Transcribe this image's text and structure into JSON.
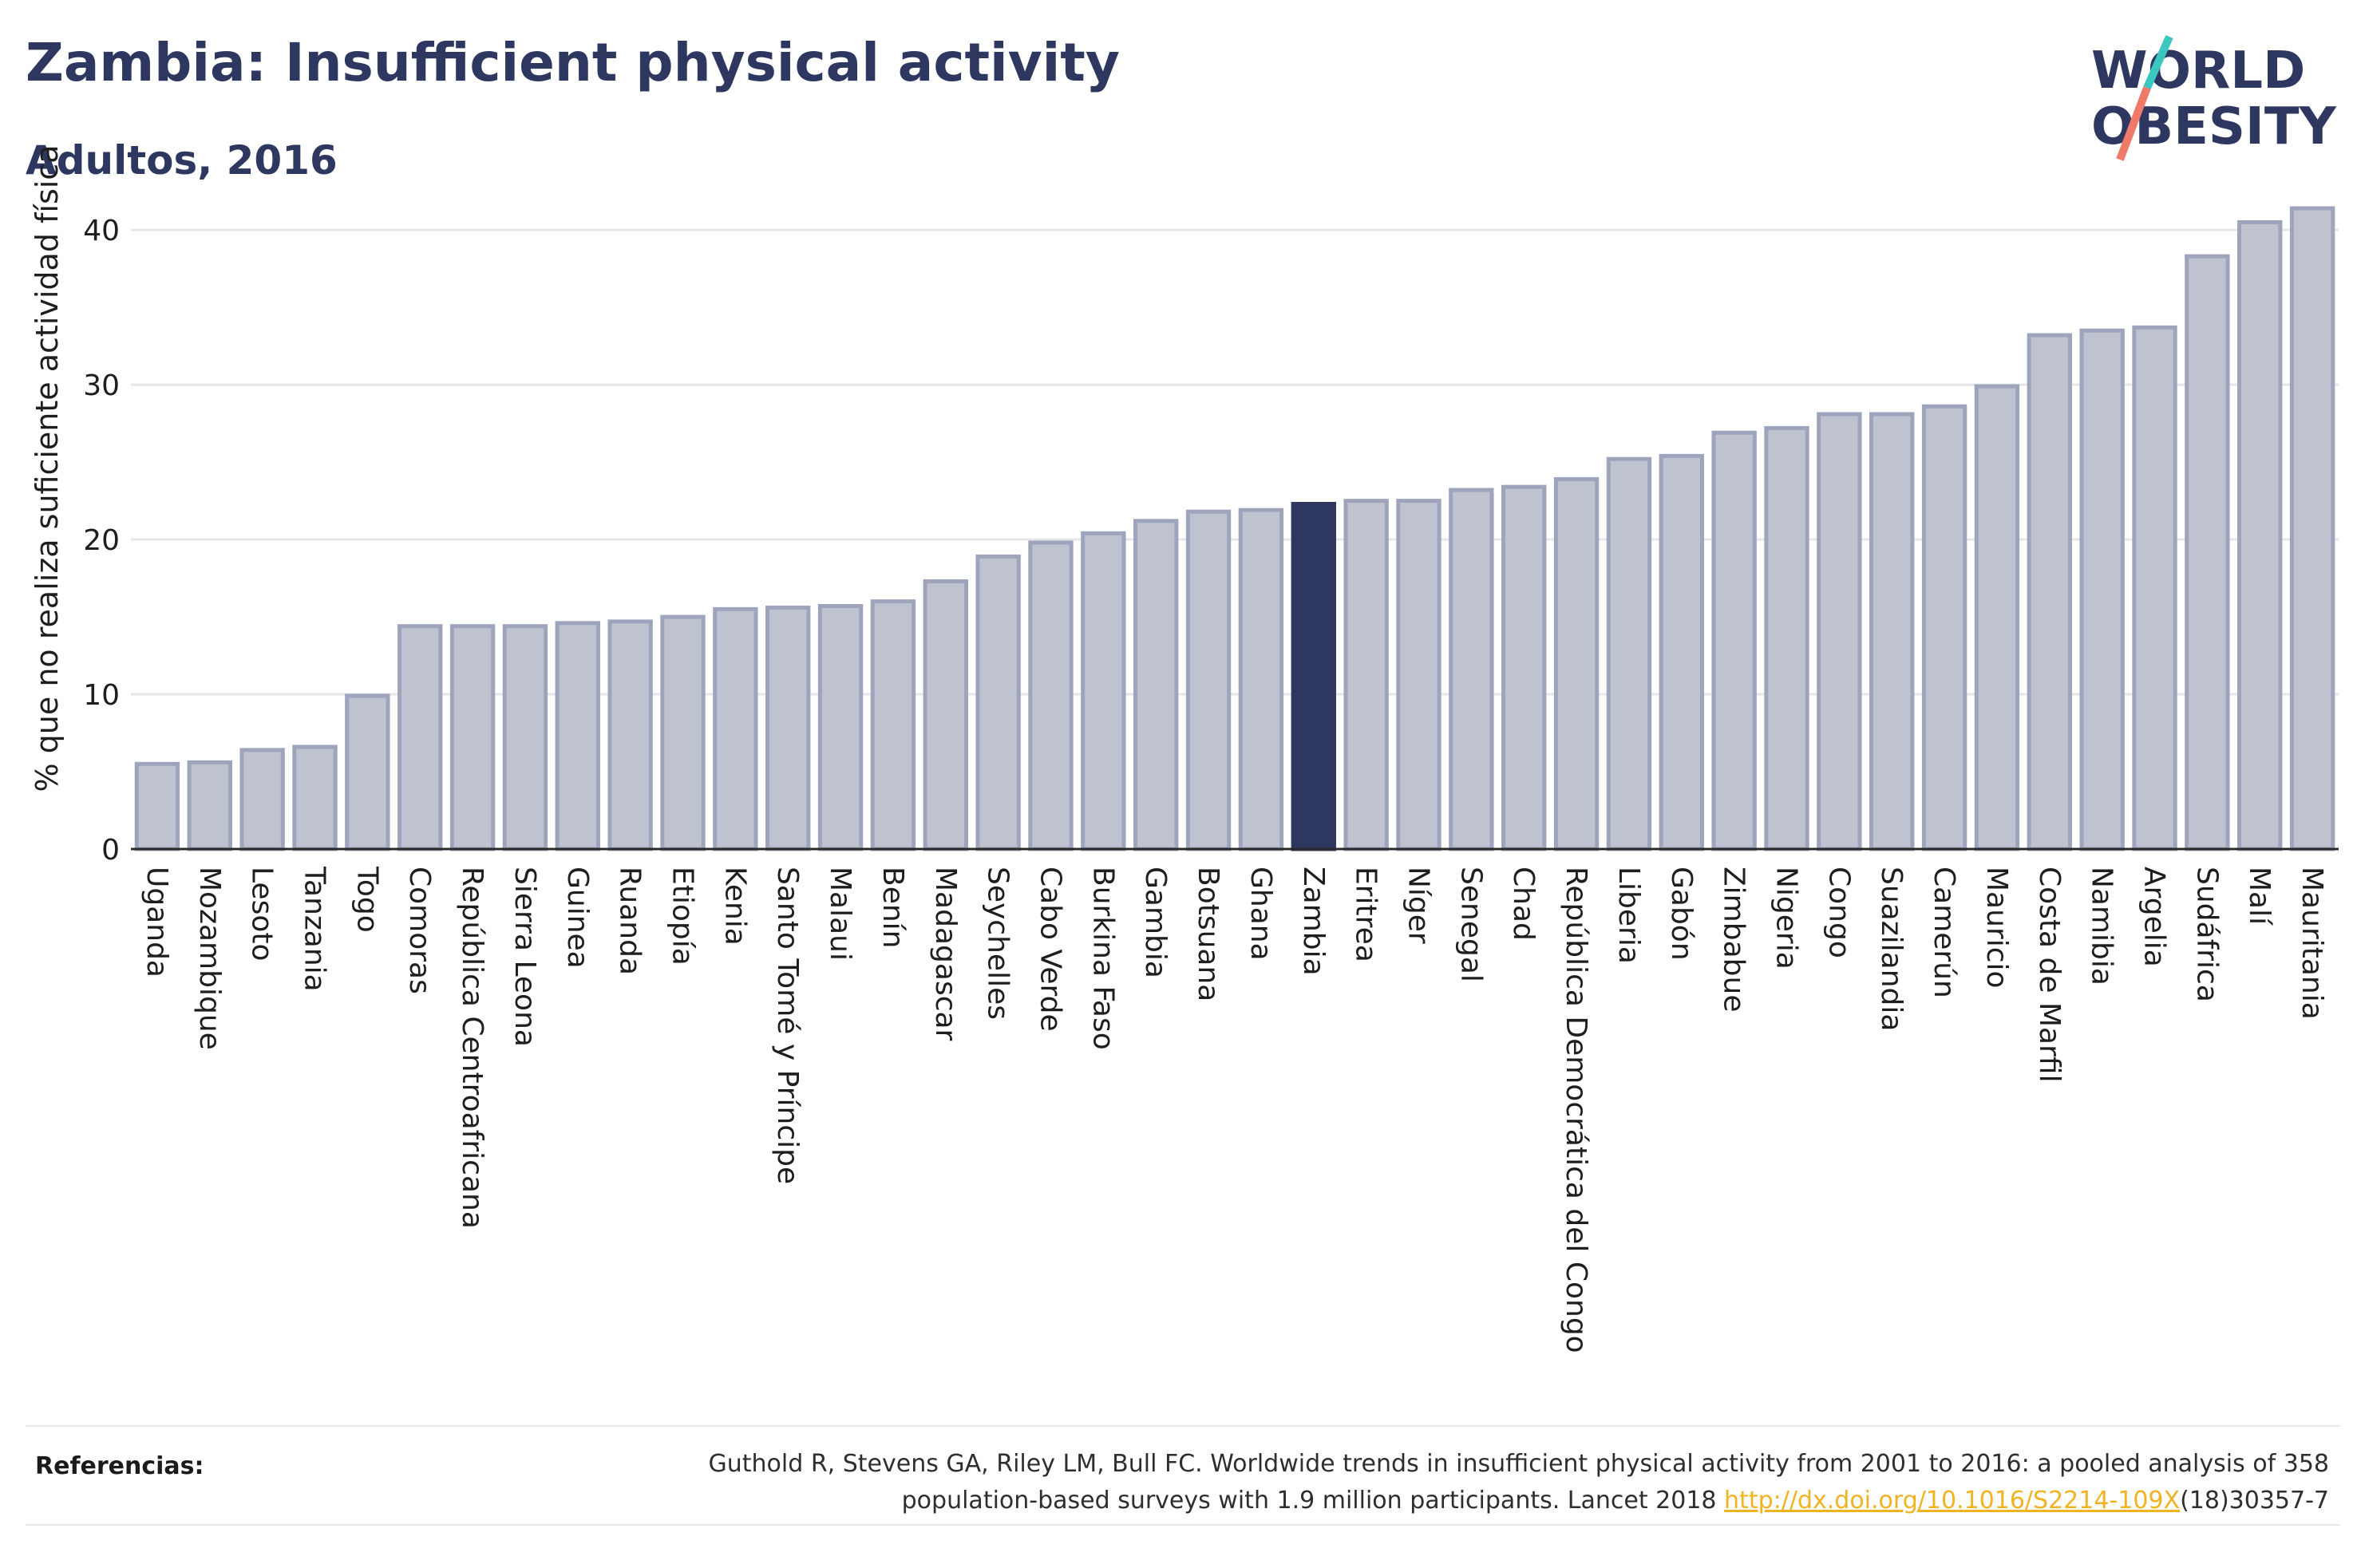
{
  "header": {
    "title": "Zambia: Insufficient physical activity",
    "subtitle": "Adultos, 2016"
  },
  "logo": {
    "line1": "WORLD",
    "line2": "OBESITY",
    "colors": {
      "text": "#2d3760",
      "slash_teal": "#3cc6c0",
      "slash_coral": "#f07a6a"
    }
  },
  "chart_data": {
    "type": "bar",
    "ylabel": "% que no realiza suficiente actividad física",
    "xlabel": "",
    "ylim": [
      0,
      43
    ],
    "yticks": [
      0,
      10,
      20,
      30,
      40
    ],
    "grid": true,
    "highlight": "Zambia",
    "colors": {
      "bar": "#bfc3d0",
      "bar_stroke": "#9ea4bc",
      "highlight": "#2d3760",
      "grid": "#e6e6ea",
      "axis": "#2b2b2b"
    },
    "categories": [
      "Uganda",
      "Mozambique",
      "Lesoto",
      "Tanzania",
      "Togo",
      "Comoras",
      "República Centroafricana",
      "Sierra Leona",
      "Guinea",
      "Ruanda",
      "Etiopía",
      "Kenia",
      "Santo Tomé y Príncipe",
      "Malaui",
      "Benín",
      "Madagascar",
      "Seychelles",
      "Cabo Verde",
      "Burkina Faso",
      "Gambia",
      "Botsuana",
      "Ghana",
      "Zambia",
      "Eritrea",
      "Níger",
      "Senegal",
      "Chad",
      "República Democrática del Congo",
      "Liberia",
      "Gabón",
      "Zimbabue",
      "Nigeria",
      "Congo",
      "Suazilandia",
      "Camerún",
      "Mauricio",
      "Costa de Marfil",
      "Namibia",
      "Argelia",
      "Sudáfrica",
      "Malí",
      "Mauritania"
    ],
    "values": [
      5.5,
      5.6,
      6.4,
      6.6,
      9.9,
      14.4,
      14.4,
      14.4,
      14.6,
      14.7,
      15.0,
      15.5,
      15.6,
      15.7,
      16.0,
      17.3,
      18.9,
      19.8,
      20.4,
      21.2,
      21.8,
      21.9,
      22.3,
      22.5,
      22.5,
      23.2,
      23.4,
      23.9,
      25.2,
      25.4,
      26.9,
      27.2,
      28.1,
      28.1,
      28.6,
      29.9,
      33.2,
      33.5,
      33.7,
      38.3,
      40.5,
      41.4
    ]
  },
  "references": {
    "label": "Referencias:",
    "text_line1": "Guthold R, Stevens GA, Riley LM, Bull FC. Worldwide trends in insufficient physical activity from 2001 to 2016: a pooled analysis of 358",
    "text_line2_prefix": "population-based surveys with 1.9 million participants. Lancet 2018 ",
    "link_text": "http://dx.doi.org/10.1016/S2214-109X",
    "text_line2_suffix": "(18)30357-7"
  }
}
